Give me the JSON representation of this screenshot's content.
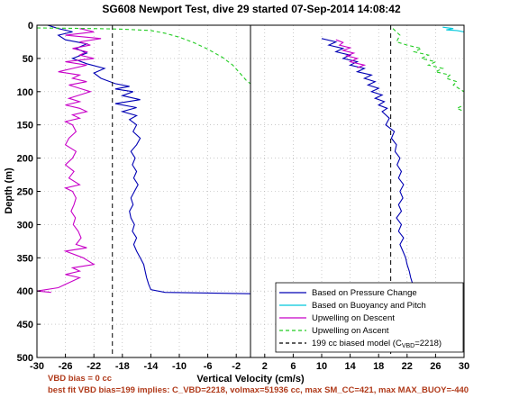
{
  "chart_data": {
    "type": "line",
    "title": "SG608 Newport Test, dive 29 started 07-Sep-2014 14:08:42",
    "xlabel": "Vertical Velocity (cm/s)",
    "ylabel": "Depth (m)",
    "ylim": [
      500,
      0
    ],
    "y_ticks": [
      "0",
      "50",
      "100",
      "150",
      "200",
      "250",
      "300",
      "350",
      "400",
      "450",
      "500"
    ],
    "left_panel": {
      "xlim": [
        -30,
        0
      ],
      "x_ticks": [
        "-30",
        "-26",
        "-22",
        "-18",
        "-14",
        "-10",
        "-6",
        "-2"
      ],
      "bias_line_x": -19.4,
      "series": [
        {
          "name": "Based on Pressure Change",
          "color": "#0000b4",
          "points": [
            [
              -28.5,
              0
            ],
            [
              -27,
              5
            ],
            [
              -25,
              10
            ],
            [
              -27,
              15
            ],
            [
              -26,
              22
            ],
            [
              -23,
              28
            ],
            [
              -24.5,
              35
            ],
            [
              -23,
              42
            ],
            [
              -25,
              50
            ],
            [
              -23,
              58
            ],
            [
              -20.5,
              65
            ],
            [
              -22,
              72
            ],
            [
              -21,
              80
            ],
            [
              -19,
              88
            ],
            [
              -17,
              92
            ],
            [
              -19,
              96
            ],
            [
              -16.5,
              100
            ],
            [
              -18,
              106
            ],
            [
              -15.5,
              112
            ],
            [
              -19,
              118
            ],
            [
              -16,
              124
            ],
            [
              -18,
              130
            ],
            [
              -16,
              136
            ],
            [
              -17,
              142
            ],
            [
              -16,
              150
            ],
            [
              -16.5,
              160
            ],
            [
              -15.5,
              170
            ],
            [
              -16,
              180
            ],
            [
              -16.8,
              190
            ],
            [
              -16.2,
              200
            ],
            [
              -16.6,
              210
            ],
            [
              -16,
              220
            ],
            [
              -16.4,
              230
            ],
            [
              -15.8,
              240
            ],
            [
              -16.3,
              250
            ],
            [
              -16.8,
              260
            ],
            [
              -16.5,
              270
            ],
            [
              -17,
              280
            ],
            [
              -16.8,
              290
            ],
            [
              -16.3,
              300
            ],
            [
              -16.6,
              310
            ],
            [
              -16,
              320
            ],
            [
              -16.4,
              330
            ],
            [
              -16,
              340
            ],
            [
              -15.5,
              350
            ],
            [
              -15,
              360
            ],
            [
              -14.8,
              370
            ],
            [
              -14.6,
              380
            ],
            [
              -14.3,
              390
            ],
            [
              -14,
              398
            ],
            [
              -12,
              402
            ],
            [
              0,
              404
            ]
          ]
        },
        {
          "name": "Upwelling on Descent",
          "color": "#c800c8",
          "points": [
            [
              -24,
              5
            ],
            [
              -22,
              10
            ],
            [
              -26,
              15
            ],
            [
              -21,
              20
            ],
            [
              -24,
              25
            ],
            [
              -22.5,
              30
            ],
            [
              -25,
              35
            ],
            [
              -23,
              40
            ],
            [
              -24,
              45
            ],
            [
              -22,
              50
            ],
            [
              -26,
              55
            ],
            [
              -23,
              60
            ],
            [
              -25,
              65
            ],
            [
              -27,
              70
            ],
            [
              -24,
              75
            ],
            [
              -25,
              80
            ],
            [
              -23,
              85
            ],
            [
              -25.5,
              90
            ],
            [
              -24,
              95
            ],
            [
              -22.5,
              100
            ],
            [
              -24,
              105
            ],
            [
              -25.5,
              110
            ],
            [
              -24,
              115
            ],
            [
              -26,
              120
            ],
            [
              -24,
              125
            ],
            [
              -23,
              130
            ],
            [
              -25,
              135
            ],
            [
              -24,
              140
            ],
            [
              -26,
              145
            ],
            [
              -25,
              150
            ],
            [
              -24.5,
              160
            ],
            [
              -25.5,
              170
            ],
            [
              -26,
              180
            ],
            [
              -24.5,
              190
            ],
            [
              -25,
              200
            ],
            [
              -26,
              210
            ],
            [
              -24.8,
              220
            ],
            [
              -25.5,
              230
            ],
            [
              -24,
              240
            ],
            [
              -26,
              245
            ],
            [
              -25,
              250
            ],
            [
              -24.5,
              260
            ],
            [
              -24.8,
              270
            ],
            [
              -25.2,
              280
            ],
            [
              -24.6,
              290
            ],
            [
              -24.9,
              300
            ],
            [
              -24.2,
              310
            ],
            [
              -23.8,
              320
            ],
            [
              -24.5,
              330
            ],
            [
              -23,
              335
            ],
            [
              -26,
              340
            ],
            [
              -23.5,
              350
            ],
            [
              -22,
              360
            ],
            [
              -25,
              365
            ],
            [
              -24,
              370
            ],
            [
              -26,
              375
            ],
            [
              -24,
              380
            ],
            [
              -25,
              385
            ],
            [
              -26,
              390
            ],
            [
              -27,
              395
            ],
            [
              -30,
              400
            ],
            [
              -28,
              402
            ]
          ]
        },
        {
          "name": "Upwelling on Ascent",
          "color": "#22cc22",
          "dashed": true,
          "points": [
            [
              -30,
              4
            ],
            [
              -22,
              5
            ],
            [
              -18,
              6
            ],
            [
              -14,
              8
            ],
            [
              -12,
              12
            ],
            [
              -10,
              18
            ],
            [
              -8,
              26
            ],
            [
              -6,
              36
            ],
            [
              -4,
              48
            ],
            [
              -2.5,
              60
            ],
            [
              -1.5,
              72
            ],
            [
              -0.5,
              84
            ],
            [
              0,
              88
            ]
          ]
        }
      ]
    },
    "right_panel": {
      "xlim": [
        0,
        30
      ],
      "x_ticks": [
        "2",
        "6",
        "10",
        "14",
        "18",
        "22",
        "26",
        "30"
      ],
      "bias_line_x": 19.7,
      "series": [
        {
          "name": "Based on Pressure Change",
          "color": "#0000b4",
          "points": [
            [
              10,
              20
            ],
            [
              12,
              25
            ],
            [
              11,
              30
            ],
            [
              13,
              35
            ],
            [
              12,
              40
            ],
            [
              14,
              45
            ],
            [
              13,
              50
            ],
            [
              15,
              55
            ],
            [
              14,
              60
            ],
            [
              16,
              65
            ],
            [
              15,
              70
            ],
            [
              17,
              75
            ],
            [
              16,
              80
            ],
            [
              17.5,
              85
            ],
            [
              16.5,
              90
            ],
            [
              18,
              95
            ],
            [
              17,
              100
            ],
            [
              18.5,
              105
            ],
            [
              17.5,
              110
            ],
            [
              18.8,
              115
            ],
            [
              18,
              120
            ],
            [
              19.2,
              125
            ],
            [
              18.5,
              130
            ],
            [
              19.5,
              140
            ],
            [
              19,
              150
            ],
            [
              20.2,
              160
            ],
            [
              19.8,
              170
            ],
            [
              20.5,
              180
            ],
            [
              20.3,
              190
            ],
            [
              21,
              200
            ],
            [
              20.6,
              210
            ],
            [
              21.2,
              220
            ],
            [
              20.8,
              230
            ],
            [
              21.5,
              240
            ],
            [
              21,
              250
            ],
            [
              21.4,
              260
            ],
            [
              20.8,
              270
            ],
            [
              21.2,
              280
            ],
            [
              20.5,
              290
            ],
            [
              21.2,
              300
            ],
            [
              20.8,
              310
            ],
            [
              21.5,
              320
            ],
            [
              21,
              330
            ],
            [
              21.4,
              340
            ],
            [
              21.8,
              350
            ],
            [
              22,
              360
            ],
            [
              22.3,
              370
            ],
            [
              22.5,
              380
            ],
            [
              22.8,
              390
            ],
            [
              23,
              398
            ]
          ]
        },
        {
          "name": "Based on Buoyancy and Pitch",
          "color": "#00c8dc",
          "points": [
            [
              27,
              3
            ],
            [
              28.5,
              5
            ],
            [
              27.5,
              7
            ],
            [
              29,
              8
            ],
            [
              30,
              10
            ]
          ]
        },
        {
          "name": "Upwelling on Descent",
          "color": "#c800c8",
          "points": [
            [
              12,
              22
            ],
            [
              13,
              26
            ],
            [
              12.5,
              30
            ],
            [
              14,
              34
            ],
            [
              13,
              38
            ],
            [
              14.5,
              42
            ],
            [
              13.5,
              46
            ],
            [
              15,
              50
            ],
            [
              14,
              55
            ],
            [
              16,
              60
            ],
            [
              15,
              64
            ]
          ]
        },
        {
          "name": "Upwelling on Ascent",
          "color": "#22cc22",
          "dashed": true,
          "points": [
            [
              20,
              5
            ],
            [
              21,
              15
            ],
            [
              20.5,
              25
            ],
            [
              22,
              30
            ],
            [
              24,
              35
            ],
            [
              23,
              40
            ],
            [
              25,
              45
            ],
            [
              24,
              50
            ],
            [
              26,
              55
            ],
            [
              25,
              60
            ],
            [
              27,
              65
            ],
            [
              26,
              70
            ],
            [
              28,
              75
            ],
            [
              27.5,
              80
            ],
            [
              29,
              85
            ],
            [
              28.5,
              90
            ],
            [
              30,
              100
            ],
            [
              30,
              120
            ],
            [
              29,
              125
            ],
            [
              30,
              130
            ]
          ]
        }
      ]
    },
    "legend": {
      "placement": "bottom-right",
      "entries": [
        {
          "label": "Based on Pressure Change",
          "color": "#0000b4",
          "style": "solid"
        },
        {
          "label": "Based on Buoyancy and Pitch",
          "color": "#00c8dc",
          "style": "solid"
        },
        {
          "label": "Upwelling on Descent",
          "color": "#c800c8",
          "style": "solid"
        },
        {
          "label": "Upwelling on Ascent",
          "color": "#22cc22",
          "style": "dashed"
        },
        {
          "label_main": "199 cc biased model (C",
          "label_sub": "VBD",
          "label_end": "=2218)",
          "color": "#000000",
          "style": "dashed"
        }
      ]
    },
    "grid": true
  },
  "footer": {
    "line1": "VBD bias = 0 cc",
    "line2": "best fit VBD bias=199 implies: C_VBD=2218, volmax=51936 cc, max SM_CC=421, max MAX_BUOY=-440",
    "color": "#b03a1a"
  }
}
